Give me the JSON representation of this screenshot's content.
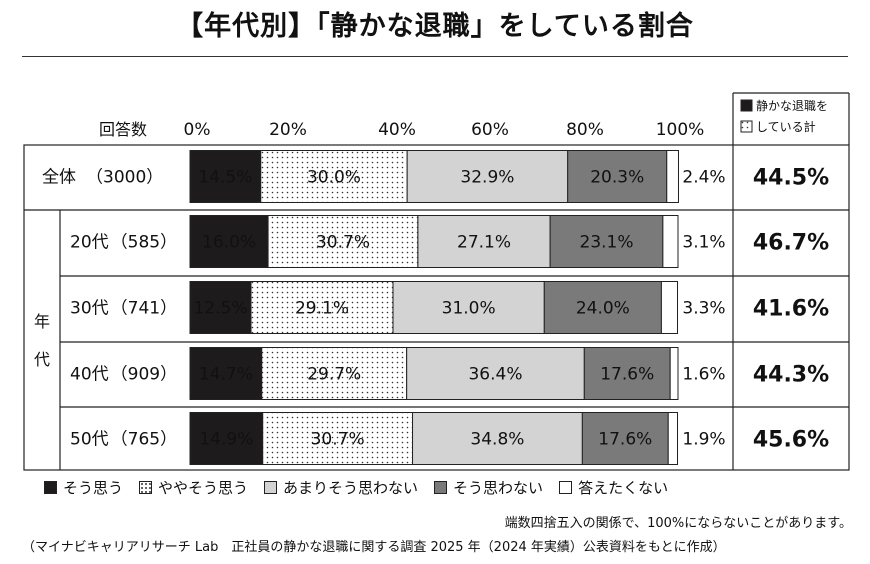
{
  "title": "【年代別】「静かな退職」をしている割合",
  "colors": {
    "agree": "#1e1b1c",
    "somewhat_agree": "#ffffff",
    "not_really": "#d3d3d3",
    "disagree": "#7a7a7a",
    "no_answer": "#ffffff",
    "total_box": "#1e1b1c"
  },
  "chart_data": {
    "type": "bar",
    "orientation": "horizontal",
    "stacked": true,
    "respondents_header": "回答数",
    "x_ticks": [
      "0%",
      "20%",
      "40%",
      "60%",
      "80%",
      "100%"
    ],
    "xlim": [
      0,
      100
    ],
    "group_label": "年代",
    "total_header": [
      "静かな退職を",
      "している計"
    ],
    "series": [
      {
        "name": "そう思う"
      },
      {
        "name": "ややそう思う"
      },
      {
        "name": "あまりそう思わない"
      },
      {
        "name": "そう思わない"
      },
      {
        "name": "答えたくない"
      }
    ],
    "rows": [
      {
        "label": "全体",
        "n": "（3000）",
        "values": [
          14.5,
          30.0,
          32.9,
          20.3,
          2.4
        ],
        "labels": [
          "14.5%",
          "30.0%",
          "32.9%",
          "20.3%",
          "2.4%"
        ],
        "total": "44.5%"
      },
      {
        "label": "20代",
        "n": "（585）",
        "values": [
          16.0,
          30.7,
          27.1,
          23.1,
          3.1
        ],
        "labels": [
          "16.0%",
          "30.7%",
          "27.1%",
          "23.1%",
          "3.1%"
        ],
        "total": "46.7%"
      },
      {
        "label": "30代",
        "n": "（741）",
        "values": [
          12.5,
          29.1,
          31.0,
          24.0,
          3.3
        ],
        "labels": [
          "12.5%",
          "29.1%",
          "31.0%",
          "24.0%",
          "3.3%"
        ],
        "total": "41.6%"
      },
      {
        "label": "40代",
        "n": "（909）",
        "values": [
          14.7,
          29.7,
          36.4,
          17.6,
          1.6
        ],
        "labels": [
          "14.7%",
          "29.7%",
          "36.4%",
          "17.6%",
          "1.6%"
        ],
        "total": "44.3%"
      },
      {
        "label": "50代",
        "n": "（765）",
        "values": [
          14.9,
          30.7,
          34.8,
          17.6,
          1.9
        ],
        "labels": [
          "14.9%",
          "30.7%",
          "34.8%",
          "17.6%",
          "1.9%"
        ],
        "total": "45.6%"
      }
    ]
  },
  "notes": {
    "rounding": "端数四捨五入の関係で、100%にならないことがあります。",
    "source": "（マイナビキャリアリサーチ Lab　正社員の静かな退職に関する調査 2025 年（2024 年実績）公表資料をもとに作成）"
  }
}
